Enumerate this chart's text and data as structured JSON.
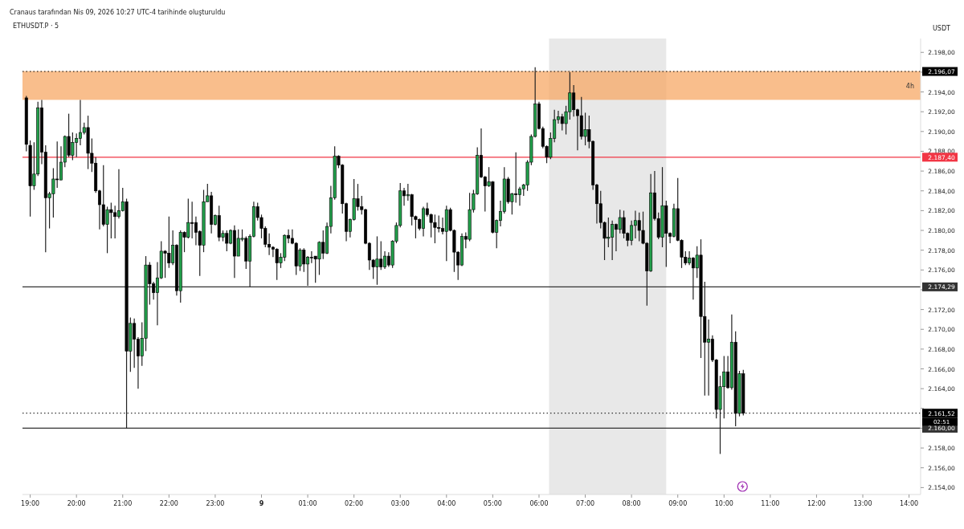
{
  "chart_data": {
    "type": "candlestick",
    "title": "ETHUSDT.P · 5",
    "subtitle": "Cranaus tarafından Nis 09, 2026 10:27 UTC-4 tarihinde oluşturuldu",
    "ylabel": "USDT",
    "colors": [
      "#000000",
      "#000000",
      "#22a04b",
      "#22a04b",
      "#000000",
      "#000000",
      "#22a04b",
      "#22a04b",
      "#000000",
      "#22a04b",
      "#22a04b",
      "#000000",
      "#22a04b",
      "#22a04b",
      "#22a04b",
      "#22a04b",
      "#000000",
      "#000000",
      "#000000",
      "#000000",
      "#000000",
      "#22a04b",
      "#000000",
      "#000000",
      "#22a04b",
      "#22a04b",
      "#000000",
      "#22a04b",
      "#000000",
      "#000000",
      "#22a04b",
      "#22a04b",
      "#000000",
      "#000000",
      "#22a04b",
      "#22a04b",
      "#000000",
      "#000000",
      "#22a04b",
      "#000000",
      "#22a04b",
      "#000000",
      "#22a04b",
      "#000000",
      "#000000",
      "#000000",
      "#22a04b",
      "#22a04b",
      "#000000",
      "#22a04b",
      "#000000",
      "#22a04b",
      "#000000",
      "#22a04b",
      "#000000",
      "#22a04b",
      "#22a04b",
      "#000000",
      "#22a04b",
      "#22a04b",
      "#000000",
      "#000000",
      "#000000",
      "#000000",
      "#000000",
      "#000000",
      "#22a04b",
      "#22a04b",
      "#000000",
      "#000000",
      "#000000",
      "#22a04b",
      "#000000",
      "#22a04b",
      "#000000",
      "#000000",
      "#22a04b",
      "#000000",
      "#22a04b",
      "#22a04b",
      "#22a04b",
      "#000000",
      "#000000",
      "#000000",
      "#22a04b",
      "#22a04b",
      "#000000",
      "#000000",
      "#000000",
      "#000000",
      "#000000",
      "#22a04b",
      "#000000",
      "#22a04b",
      "#000000",
      "#22a04b",
      "#22a04b",
      "#22a04b",
      "#000000",
      "#22a04b",
      "#000000",
      "#000000",
      "#000000",
      "#22a04b",
      "#000000",
      "#000000",
      "#000000",
      "#000000",
      "#000000",
      "#22a04b",
      "#000000",
      "#000000",
      "#000000",
      "#22a04b",
      "#000000",
      "#22a04b",
      "#22a04b",
      "#22a04b",
      "#000000",
      "#000000",
      "#22a04b",
      "#000000",
      "#22a04b",
      "#22a04b",
      "#22a04b",
      "#000000",
      "#22a04b",
      "#000000",
      "#22a04b",
      "#22a04b",
      "#22a04b",
      "#22a04b",
      "#22a04b",
      "#000000",
      "#000000",
      "#000000",
      "#22a04b",
      "#22a04b",
      "#22a04b",
      "#000000",
      "#22a04b",
      "#22a04b",
      "#000000",
      "#000000",
      "#000000",
      "#22a04b",
      "#000000",
      "#000000",
      "#000000",
      "#000000",
      "#000000",
      "#22a04b",
      "#22a04b",
      "#000000",
      "#22a04b",
      "#000000",
      "#000000",
      "#22a04b",
      "#22a04b",
      "#000000",
      "#000000",
      "#000000",
      "#22a04b",
      "#000000",
      "#000000",
      "#22a04b",
      "#000000",
      "#000000",
      "#22a04b",
      "#000000",
      "#000000",
      "#000000",
      "#22a04b",
      "#000000",
      "#22a04b",
      "#000000",
      "#000000",
      "#22a04b",
      "#000000",
      "#000000",
      "#22a04b",
      "#22a04b",
      "#000000",
      "#22a04b",
      "#000000",
      "#22a04b",
      "#000000"
    ],
    "xlim": [
      "2026-04-08T18:50",
      "2026-04-09T14:15"
    ],
    "xticks": [
      {
        "value": "2026-04-08T19:00",
        "label": "19:00"
      },
      {
        "value": "2026-04-08T20:00",
        "label": "20:00"
      },
      {
        "value": "2026-04-08T21:00",
        "label": "21:00"
      },
      {
        "value": "2026-04-08T22:00",
        "label": "22:00"
      },
      {
        "value": "2026-04-08T23:00",
        "label": "23:00"
      },
      {
        "value": "2026-04-09T00:00",
        "label": "9"
      },
      {
        "value": "2026-04-09T01:00",
        "label": "01:00"
      },
      {
        "value": "2026-04-09T02:00",
        "label": "02:00"
      },
      {
        "value": "2026-04-09T03:00",
        "label": "03:00"
      },
      {
        "value": "2026-04-09T04:00",
        "label": "04:00"
      },
      {
        "value": "2026-04-09T05:00",
        "label": "05:00"
      },
      {
        "value": "2026-04-09T06:00",
        "label": "06:00"
      },
      {
        "value": "2026-04-09T07:00",
        "label": "07:00"
      },
      {
        "value": "2026-04-09T08:00",
        "label": "08:00"
      },
      {
        "value": "2026-04-09T09:00",
        "label": "09:00"
      },
      {
        "value": "2026-04-09T10:00",
        "label": "10:00"
      },
      {
        "value": "2026-04-09T11:00",
        "label": "11:00"
      },
      {
        "value": "2026-04-09T12:00",
        "label": "12:00"
      },
      {
        "value": "2026-04-09T13:00",
        "label": "13:00"
      },
      {
        "value": "2026-04-09T14:00",
        "label": "14:00"
      }
    ],
    "ylim": [
      2153.3,
      2199.4
    ],
    "yticks": [
      {
        "value": 2154,
        "label": "2.154,00"
      },
      {
        "value": 2156,
        "label": "2.156,00"
      },
      {
        "value": 2158,
        "label": "2.158,00"
      },
      {
        "value": 2160,
        "label": null
      },
      {
        "value": 2162,
        "label": null
      },
      {
        "value": 2164,
        "label": "2.164,00"
      },
      {
        "value": 2166,
        "label": "2.166,00"
      },
      {
        "value": 2168,
        "label": "2.168,00"
      },
      {
        "value": 2170,
        "label": "2.170,00"
      },
      {
        "value": 2172,
        "label": "2.172,00"
      },
      {
        "value": 2174,
        "label": null
      },
      {
        "value": 2176,
        "label": "2.176,00"
      },
      {
        "value": 2178,
        "label": "2.178,00"
      },
      {
        "value": 2180,
        "label": "2.180,00"
      },
      {
        "value": 2182,
        "label": "2.182,00"
      },
      {
        "value": 2184,
        "label": "2.184,00"
      },
      {
        "value": 2186,
        "label": "2.186,00"
      },
      {
        "value": 2188,
        "label": "2.188,00"
      },
      {
        "value": 2190,
        "label": "2.190,00"
      },
      {
        "value": 2192,
        "label": "2.192,00"
      },
      {
        "value": 2194,
        "label": "2.194,00"
      },
      {
        "value": 2196,
        "label": null
      },
      {
        "value": 2198,
        "label": "2.198,00"
      }
    ],
    "bands": [
      {
        "axis": "x",
        "from": "2026-04-09T06:13",
        "to": "2026-04-09T08:45",
        "color": "#e8e8e8"
      },
      {
        "axis": "y",
        "from": 2193.2,
        "to": 2196.1,
        "label": "4h",
        "color": "#f7a866"
      }
    ],
    "ref_lines": [
      {
        "axis": "y",
        "value": 2196.07,
        "label": "2.196,07",
        "color": "#000000",
        "line_style": "dotted"
      },
      {
        "axis": "y",
        "value": 2187.4,
        "label": "2.187,40",
        "color": "#f23645"
      },
      {
        "axis": "y",
        "value": 2174.29,
        "label": "2.174,29",
        "color": "#333333"
      },
      {
        "axis": "y",
        "value": 2161.52,
        "label": "2.161,52",
        "color": "#000000",
        "line_style": "dotted"
      },
      {
        "axis": "y",
        "value": 2160,
        "label": "2.160,00",
        "color": "#333333"
      }
    ],
    "annotations": [
      "02:51"
    ],
    "x": [
      "2026-04-08T18:55",
      "2026-04-08T19:00",
      "2026-04-08T19:05",
      "2026-04-08T19:10",
      "2026-04-08T19:15",
      "2026-04-08T19:20",
      "2026-04-08T19:25",
      "2026-04-08T19:30",
      "2026-04-08T19:35",
      "2026-04-08T19:40",
      "2026-04-08T19:45",
      "2026-04-08T19:50",
      "2026-04-08T19:55",
      "2026-04-08T20:00",
      "2026-04-08T20:05",
      "2026-04-08T20:10",
      "2026-04-08T20:15",
      "2026-04-08T20:20",
      "2026-04-08T20:25",
      "2026-04-08T20:30",
      "2026-04-08T20:35",
      "2026-04-08T20:40",
      "2026-04-08T20:45",
      "2026-04-08T20:50",
      "2026-04-08T20:55",
      "2026-04-08T21:00",
      "2026-04-08T21:05",
      "2026-04-08T21:10",
      "2026-04-08T21:15",
      "2026-04-08T21:20",
      "2026-04-08T21:25",
      "2026-04-08T21:30",
      "2026-04-08T21:35",
      "2026-04-08T21:40",
      "2026-04-08T21:45",
      "2026-04-08T21:50",
      "2026-04-08T21:55",
      "2026-04-08T22:00",
      "2026-04-08T22:05",
      "2026-04-08T22:10",
      "2026-04-08T22:15",
      "2026-04-08T22:20",
      "2026-04-08T22:25",
      "2026-04-08T22:30",
      "2026-04-08T22:35",
      "2026-04-08T22:40",
      "2026-04-08T22:45",
      "2026-04-08T22:50",
      "2026-04-08T22:55",
      "2026-04-08T23:00",
      "2026-04-08T23:05",
      "2026-04-08T23:10",
      "2026-04-08T23:15",
      "2026-04-08T23:20",
      "2026-04-08T23:25",
      "2026-04-08T23:30",
      "2026-04-08T23:35",
      "2026-04-08T23:40",
      "2026-04-08T23:45",
      "2026-04-08T23:50",
      "2026-04-08T23:55",
      "2026-04-09T00:00",
      "2026-04-09T00:05",
      "2026-04-09T00:10",
      "2026-04-09T00:15",
      "2026-04-09T00:20",
      "2026-04-09T00:25",
      "2026-04-09T00:30",
      "2026-04-09T00:35",
      "2026-04-09T00:40",
      "2026-04-09T00:45",
      "2026-04-09T00:50",
      "2026-04-09T00:55",
      "2026-04-09T01:00",
      "2026-04-09T01:05",
      "2026-04-09T01:10",
      "2026-04-09T01:15",
      "2026-04-09T01:20",
      "2026-04-09T01:25",
      "2026-04-09T01:30",
      "2026-04-09T01:35",
      "2026-04-09T01:40",
      "2026-04-09T01:45",
      "2026-04-09T01:50",
      "2026-04-09T01:55",
      "2026-04-09T02:00",
      "2026-04-09T02:05",
      "2026-04-09T02:10",
      "2026-04-09T02:15",
      "2026-04-09T02:20",
      "2026-04-09T02:25",
      "2026-04-09T02:30",
      "2026-04-09T02:35",
      "2026-04-09T02:40",
      "2026-04-09T02:45",
      "2026-04-09T02:50",
      "2026-04-09T02:55",
      "2026-04-09T03:00",
      "2026-04-09T03:05",
      "2026-04-09T03:10",
      "2026-04-09T03:15",
      "2026-04-09T03:20",
      "2026-04-09T03:25",
      "2026-04-09T03:30",
      "2026-04-09T03:35",
      "2026-04-09T03:40",
      "2026-04-09T03:45",
      "2026-04-09T03:50",
      "2026-04-09T03:55",
      "2026-04-09T04:00",
      "2026-04-09T04:05",
      "2026-04-09T04:10",
      "2026-04-09T04:15",
      "2026-04-09T04:20",
      "2026-04-09T04:25",
      "2026-04-09T04:30",
      "2026-04-09T04:35",
      "2026-04-09T04:40",
      "2026-04-09T04:45",
      "2026-04-09T04:50",
      "2026-04-09T04:55",
      "2026-04-09T05:00",
      "2026-04-09T05:05",
      "2026-04-09T05:10",
      "2026-04-09T05:15",
      "2026-04-09T05:20",
      "2026-04-09T05:25",
      "2026-04-09T05:30",
      "2026-04-09T05:35",
      "2026-04-09T05:40",
      "2026-04-09T05:45",
      "2026-04-09T05:50",
      "2026-04-09T05:55",
      "2026-04-09T06:00",
      "2026-04-09T06:05",
      "2026-04-09T06:10",
      "2026-04-09T06:15",
      "2026-04-09T06:20",
      "2026-04-09T06:25",
      "2026-04-09T06:30",
      "2026-04-09T06:35",
      "2026-04-09T06:40",
      "2026-04-09T06:45",
      "2026-04-09T06:50",
      "2026-04-09T06:55",
      "2026-04-09T07:00",
      "2026-04-09T07:05",
      "2026-04-09T07:10",
      "2026-04-09T07:15",
      "2026-04-09T07:20",
      "2026-04-09T07:25",
      "2026-04-09T07:30",
      "2026-04-09T07:35",
      "2026-04-09T07:40",
      "2026-04-09T07:45",
      "2026-04-09T07:50",
      "2026-04-09T07:55",
      "2026-04-09T08:00",
      "2026-04-09T08:05",
      "2026-04-09T08:10",
      "2026-04-09T08:15",
      "2026-04-09T08:20",
      "2026-04-09T08:25",
      "2026-04-09T08:30",
      "2026-04-09T08:35",
      "2026-04-09T08:40",
      "2026-04-09T08:45",
      "2026-04-09T08:50",
      "2026-04-09T08:55",
      "2026-04-09T09:00",
      "2026-04-09T09:05",
      "2026-04-09T09:10",
      "2026-04-09T09:15",
      "2026-04-09T09:20",
      "2026-04-09T09:25",
      "2026-04-09T09:30",
      "2026-04-09T09:35",
      "2026-04-09T09:40",
      "2026-04-09T09:45",
      "2026-04-09T09:50",
      "2026-04-09T09:55",
      "2026-04-09T10:00",
      "2026-04-09T10:05",
      "2026-04-09T10:10",
      "2026-04-09T10:15",
      "2026-04-09T10:20",
      "2026-04-09T10:25"
    ],
    "ohlc": [
      [
        2193.4,
        2193.6,
        2188.0,
        2188.7
      ],
      [
        2188.6,
        2189.1,
        2181.4,
        2184.5
      ],
      [
        2184.5,
        2188.9,
        2184.1,
        2185.7
      ],
      [
        2185.7,
        2193.0,
        2185.5,
        2192.4
      ],
      [
        2192.4,
        2193.2,
        2186.7,
        2187.9
      ],
      [
        2187.9,
        2188.6,
        2177.8,
        2183.3
      ],
      [
        2183.3,
        2183.9,
        2180.2,
        2183.7
      ],
      [
        2183.7,
        2186.3,
        2181.3,
        2185.2
      ],
      [
        2185.2,
        2189.0,
        2184.3,
        2185.2
      ],
      [
        2185.1,
        2188.5,
        2185.1,
        2186.9
      ],
      [
        2186.9,
        2189.6,
        2186.4,
        2189.5
      ],
      [
        2189.5,
        2191.8,
        2187.4,
        2187.6
      ],
      [
        2187.6,
        2189.9,
        2187.1,
        2188.9
      ],
      [
        2188.9,
        2189.8,
        2187.4,
        2189.3
      ],
      [
        2189.3,
        2193.2,
        2188.6,
        2189.9
      ],
      [
        2189.9,
        2190.9,
        2189.7,
        2190.4
      ],
      [
        2190.4,
        2191.6,
        2186.2,
        2187.8
      ],
      [
        2187.8,
        2189.3,
        2185.9,
        2186.8
      ],
      [
        2186.8,
        2187.4,
        2183.8,
        2184.0
      ],
      [
        2184.0,
        2184.1,
        2180.1,
        2182.6
      ],
      [
        2182.6,
        2186.6,
        2180.4,
        2180.6
      ],
      [
        2180.6,
        2182.4,
        2177.7,
        2182.1
      ],
      [
        2182.1,
        2182.8,
        2179.2,
        2181.8
      ],
      [
        2181.8,
        2182.5,
        2179.2,
        2181.4
      ],
      [
        2181.4,
        2186.2,
        2181.2,
        2182.0
      ],
      [
        2182.0,
        2184.3,
        2181.9,
        2182.9
      ],
      [
        2182.9,
        2183.2,
        2160.0,
        2167.8
      ],
      [
        2167.8,
        2171.2,
        2165.7,
        2170.6
      ],
      [
        2170.6,
        2171.1,
        2166.1,
        2169.0
      ],
      [
        2169.0,
        2169.2,
        2164.0,
        2167.3
      ],
      [
        2167.3,
        2170.7,
        2166.3,
        2169.1
      ],
      [
        2169.1,
        2177.4,
        2167.8,
        2176.5
      ],
      [
        2176.5,
        2176.8,
        2172.5,
        2174.6
      ],
      [
        2174.6,
        2174.8,
        2173.0,
        2173.7
      ],
      [
        2173.7,
        2176.8,
        2170.4,
        2175.2
      ],
      [
        2175.2,
        2178.9,
        2175.1,
        2177.9
      ],
      [
        2177.9,
        2178.0,
        2175.2,
        2177.7
      ],
      [
        2177.7,
        2181.4,
        2176.2,
        2176.7
      ],
      [
        2176.7,
        2180.0,
        2176.5,
        2178.5
      ],
      [
        2178.5,
        2178.6,
        2173.4,
        2173.9
      ],
      [
        2173.9,
        2180.0,
        2172.7,
        2179.8
      ],
      [
        2179.8,
        2179.9,
        2177.8,
        2179.3
      ],
      [
        2179.3,
        2183.2,
        2179.2,
        2180.8
      ],
      [
        2180.8,
        2182.9,
        2179.2,
        2180.7
      ],
      [
        2180.8,
        2181.4,
        2178.5,
        2179.8
      ],
      [
        2179.9,
        2180.0,
        2175.4,
        2178.5
      ],
      [
        2178.5,
        2184.1,
        2177.8,
        2182.9
      ],
      [
        2182.9,
        2184.7,
        2182.9,
        2183.5
      ],
      [
        2183.5,
        2183.9,
        2179.7,
        2180.6
      ],
      [
        2180.6,
        2181.6,
        2180.5,
        2181.5
      ],
      [
        2181.5,
        2182.5,
        2178.9,
        2179.3
      ],
      [
        2179.3,
        2180.0,
        2178.9,
        2179.7
      ],
      [
        2179.7,
        2180.0,
        2177.9,
        2178.7
      ],
      [
        2178.7,
        2180.1,
        2178.6,
        2180.0
      ],
      [
        2180.0,
        2180.5,
        2175.2,
        2177.4
      ],
      [
        2177.4,
        2180.1,
        2177.4,
        2179.2
      ],
      [
        2179.1,
        2180.1,
        2178.9,
        2179.2
      ],
      [
        2179.2,
        2179.4,
        2176.1,
        2176.9
      ],
      [
        2176.9,
        2179.6,
        2174.3,
        2179.4
      ],
      [
        2179.4,
        2182.9,
        2179.3,
        2182.4
      ],
      [
        2182.4,
        2182.8,
        2181.0,
        2181.3
      ],
      [
        2181.3,
        2181.6,
        2179.2,
        2180.2
      ],
      [
        2180.2,
        2180.4,
        2178.3,
        2178.6
      ],
      [
        2178.6,
        2179.7,
        2177.5,
        2178.3
      ],
      [
        2178.3,
        2178.4,
        2177.3,
        2178.1
      ],
      [
        2178.1,
        2178.2,
        2175.0,
        2176.7
      ],
      [
        2176.7,
        2177.7,
        2176.2,
        2177.3
      ],
      [
        2177.3,
        2179.6,
        2176.9,
        2179.5
      ],
      [
        2179.5,
        2180.1,
        2178.7,
        2179.2
      ],
      [
        2179.2,
        2180.1,
        2178.6,
        2178.7
      ],
      [
        2178.7,
        2178.8,
        2175.5,
        2176.4
      ],
      [
        2176.4,
        2178.2,
        2175.9,
        2178.0
      ],
      [
        2178.0,
        2178.2,
        2175.8,
        2176.6
      ],
      [
        2176.6,
        2177.4,
        2174.4,
        2177.3
      ],
      [
        2177.3,
        2177.9,
        2176.7,
        2177.3
      ],
      [
        2177.4,
        2177.4,
        2174.7,
        2177.1
      ],
      [
        2177.1,
        2178.9,
        2175.5,
        2178.8
      ],
      [
        2178.8,
        2180.0,
        2177.1,
        2177.7
      ],
      [
        2177.7,
        2180.8,
        2177.6,
        2180.4
      ],
      [
        2180.4,
        2184.5,
        2179.7,
        2183.3
      ],
      [
        2183.3,
        2188.5,
        2183.1,
        2187.5
      ],
      [
        2187.5,
        2187.6,
        2186.3,
        2186.6
      ],
      [
        2186.6,
        2186.7,
        2181.7,
        2182.7
      ],
      [
        2182.7,
        2182.8,
        2178.9,
        2179.9
      ],
      [
        2179.9,
        2181.2,
        2179.3,
        2181.1
      ],
      [
        2181.1,
        2185.2,
        2181.0,
        2183.2
      ],
      [
        2183.2,
        2184.7,
        2182.0,
        2182.4
      ],
      [
        2182.4,
        2183.5,
        2181.6,
        2182.1
      ],
      [
        2182.1,
        2182.2,
        2178.6,
        2178.7
      ],
      [
        2178.7,
        2178.8,
        2176.0,
        2177.0
      ],
      [
        2177.0,
        2177.1,
        2175.1,
        2176.3
      ],
      [
        2176.3,
        2179.4,
        2174.5,
        2177.1
      ],
      [
        2177.1,
        2178.9,
        2176.0,
        2176.3
      ],
      [
        2176.3,
        2177.9,
        2176.1,
        2177.4
      ],
      [
        2177.4,
        2177.8,
        2176.3,
        2176.5
      ],
      [
        2176.5,
        2179.0,
        2176.2,
        2178.9
      ],
      [
        2178.9,
        2180.8,
        2178.7,
        2180.5
      ],
      [
        2180.5,
        2184.8,
        2180.3,
        2184.0
      ],
      [
        2184.0,
        2184.3,
        2182.5,
        2183.5
      ],
      [
        2183.5,
        2184.7,
        2183.0,
        2183.6
      ],
      [
        2183.6,
        2183.7,
        2180.5,
        2181.4
      ],
      [
        2181.4,
        2181.5,
        2179.2,
        2181.1
      ],
      [
        2181.1,
        2181.2,
        2180.0,
        2180.2
      ],
      [
        2180.2,
        2182.4,
        2179.4,
        2182.2
      ],
      [
        2182.2,
        2182.8,
        2181.4,
        2181.6
      ],
      [
        2181.6,
        2181.7,
        2179.3,
        2180.8
      ],
      [
        2180.8,
        2181.6,
        2178.7,
        2180.3
      ],
      [
        2180.3,
        2181.5,
        2179.8,
        2180.2
      ],
      [
        2180.2,
        2181.3,
        2179.6,
        2179.9
      ],
      [
        2179.9,
        2182.5,
        2176.9,
        2182.1
      ],
      [
        2182.1,
        2182.3,
        2179.9,
        2180.0
      ],
      [
        2180.0,
        2180.1,
        2175.8,
        2177.8
      ],
      [
        2177.8,
        2177.9,
        2175.0,
        2176.5
      ],
      [
        2176.5,
        2179.7,
        2176.4,
        2179.4
      ],
      [
        2179.4,
        2179.8,
        2178.2,
        2179.1
      ],
      [
        2179.1,
        2183.8,
        2178.9,
        2182.1
      ],
      [
        2182.1,
        2184.1,
        2181.8,
        2183.7
      ],
      [
        2183.7,
        2188.4,
        2183.6,
        2187.6
      ],
      [
        2187.6,
        2190.3,
        2185.3,
        2185.4
      ],
      [
        2185.4,
        2185.5,
        2181.9,
        2184.5
      ],
      [
        2184.5,
        2186.4,
        2184.4,
        2184.9
      ],
      [
        2184.9,
        2185.0,
        2179.7,
        2179.8
      ],
      [
        2179.8,
        2181.1,
        2178.2,
        2181.0
      ],
      [
        2181.0,
        2183.0,
        2180.4,
        2181.9
      ],
      [
        2181.9,
        2186.4,
        2181.7,
        2185.2
      ],
      [
        2185.2,
        2185.4,
        2182.7,
        2182.9
      ],
      [
        2182.9,
        2183.8,
        2181.6,
        2183.7
      ],
      [
        2183.7,
        2187.9,
        2182.8,
        2183.6
      ],
      [
        2183.6,
        2184.4,
        2182.5,
        2184.2
      ],
      [
        2184.2,
        2184.7,
        2183.5,
        2184.6
      ],
      [
        2184.6,
        2187.1,
        2184.0,
        2186.9
      ],
      [
        2186.9,
        2189.7,
        2186.6,
        2189.5
      ],
      [
        2189.5,
        2196.5,
        2189.4,
        2192.8
      ],
      [
        2192.8,
        2193.0,
        2190.2,
        2190.3
      ],
      [
        2190.3,
        2190.5,
        2188.3,
        2188.5
      ],
      [
        2188.5,
        2188.6,
        2186.8,
        2187.4
      ],
      [
        2187.4,
        2189.9,
        2187.2,
        2189.3
      ],
      [
        2189.3,
        2192.2,
        2188.9,
        2191.2
      ],
      [
        2191.2,
        2192.1,
        2190.8,
        2191.5
      ],
      [
        2191.5,
        2191.8,
        2190.1,
        2190.8
      ],
      [
        2190.8,
        2192.6,
        2189.7,
        2192.0
      ],
      [
        2192.0,
        2196.0,
        2191.2,
        2193.9
      ],
      [
        2193.9,
        2194.7,
        2191.5,
        2192.2
      ],
      [
        2192.2,
        2192.3,
        2188.1,
        2191.6
      ],
      [
        2191.6,
        2193.5,
        2189.2,
        2189.5
      ],
      [
        2189.5,
        2191.9,
        2188.6,
        2190.2
      ],
      [
        2190.2,
        2191.6,
        2188.3,
        2189.0
      ],
      [
        2189.0,
        2189.1,
        2184.1,
        2184.6
      ],
      [
        2184.6,
        2184.7,
        2180.7,
        2182.7
      ],
      [
        2182.7,
        2184.0,
        2180.2,
        2180.8
      ],
      [
        2180.8,
        2180.9,
        2177.0,
        2179.2
      ],
      [
        2179.2,
        2181.3,
        2178.3,
        2179.3
      ],
      [
        2179.3,
        2181.0,
        2177.0,
        2180.6
      ],
      [
        2180.6,
        2180.7,
        2177.9,
        2180.1
      ],
      [
        2180.1,
        2182.1,
        2179.7,
        2181.3
      ],
      [
        2181.3,
        2182.0,
        2179.2,
        2179.7
      ],
      [
        2179.7,
        2179.8,
        2178.4,
        2179.0
      ],
      [
        2179.0,
        2181.0,
        2178.5,
        2180.5
      ],
      [
        2180.5,
        2182.0,
        2179.2,
        2181.0
      ],
      [
        2181.0,
        2181.8,
        2178.9,
        2180.0
      ],
      [
        2180.0,
        2181.9,
        2178.6,
        2178.7
      ],
      [
        2178.7,
        2178.8,
        2172.4,
        2175.9
      ],
      [
        2175.9,
        2185.7,
        2175.8,
        2183.8
      ],
      [
        2183.8,
        2186.0,
        2181.0,
        2181.2
      ],
      [
        2181.2,
        2181.8,
        2179.1,
        2179.3
      ],
      [
        2179.3,
        2186.4,
        2178.3,
        2182.5
      ],
      [
        2182.5,
        2183.0,
        2176.3,
        2179.7
      ],
      [
        2179.7,
        2179.8,
        2178.7,
        2179.4
      ],
      [
        2179.4,
        2182.7,
        2179.3,
        2182.2
      ],
      [
        2182.2,
        2185.3,
        2178.9,
        2179.0
      ],
      [
        2179.0,
        2179.1,
        2176.2,
        2177.3
      ],
      [
        2177.3,
        2177.9,
        2176.5,
        2176.7
      ],
      [
        2176.7,
        2177.9,
        2176.5,
        2177.2
      ],
      [
        2177.2,
        2177.3,
        2173.0,
        2176.2
      ],
      [
        2176.2,
        2178.4,
        2175.2,
        2177.5
      ],
      [
        2177.5,
        2179.1,
        2167.1,
        2171.3
      ],
      [
        2171.3,
        2174.8,
        2163.3,
        2168.7
      ],
      [
        2168.7,
        2171.0,
        2163.3,
        2169.0
      ],
      [
        2169.0,
        2169.4,
        2166.7,
        2166.9
      ],
      [
        2166.9,
        2167.0,
        2161.0,
        2161.9
      ],
      [
        2161.9,
        2165.3,
        2157.4,
        2164.2
      ],
      [
        2164.2,
        2167.3,
        2161.0,
        2165.7
      ],
      [
        2165.7,
        2167.3,
        2164.0,
        2164.1
      ],
      [
        2164.1,
        2171.5,
        2163.9,
        2168.7
      ],
      [
        2168.7,
        2169.8,
        2160.2,
        2161.5
      ],
      [
        2161.5,
        2165.8,
        2161.2,
        2165.5
      ],
      [
        2165.5,
        2165.9,
        2161.3,
        2161.52
      ]
    ]
  }
}
